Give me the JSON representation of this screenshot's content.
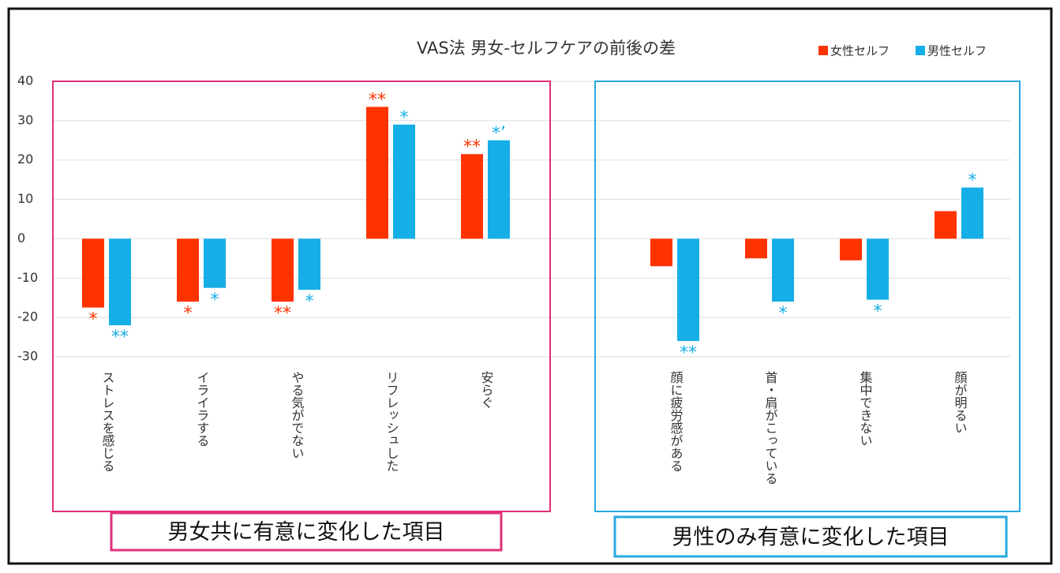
{
  "chart_data": {
    "type": "bar",
    "title": "VAS法 男女-セルフケアの前後の差",
    "categories": [
      "ストレスを感じる",
      "イライラする",
      "やる気がでない",
      "リフレッシュした",
      "安らぐ",
      null,
      "顔に疲労感がある",
      "首・肩がこっている",
      "集中できない",
      "顔が明るい"
    ],
    "series": [
      {
        "name": "女性セルフ",
        "color": "#ff3300",
        "values": [
          -17.5,
          -16,
          -16,
          33.5,
          21.5,
          null,
          -7,
          -5,
          -5.5,
          7
        ],
        "annotations": [
          "*",
          "*",
          "**",
          "**",
          "**",
          null,
          null,
          null,
          null,
          null
        ]
      },
      {
        "name": "男性セルフ",
        "color": "#16aee6",
        "values": [
          -22,
          -12.5,
          -13,
          29,
          25,
          null,
          -26,
          -16,
          -15.5,
          13
        ],
        "annotations": [
          "**",
          "*",
          "*",
          "*",
          "*’",
          null,
          "**",
          "*",
          "*",
          "*"
        ]
      }
    ],
    "ylim": [
      -30,
      40
    ],
    "yticks": [
      -30,
      -20,
      -10,
      0,
      10,
      20,
      30,
      40
    ],
    "grid": true,
    "legend": "top-right",
    "groups": [
      {
        "label": "男女共に有意に変化した項目",
        "color": "#e0307a"
      },
      {
        "label": "男性のみ有意に変化した項目",
        "color": "#27a9df"
      }
    ]
  }
}
